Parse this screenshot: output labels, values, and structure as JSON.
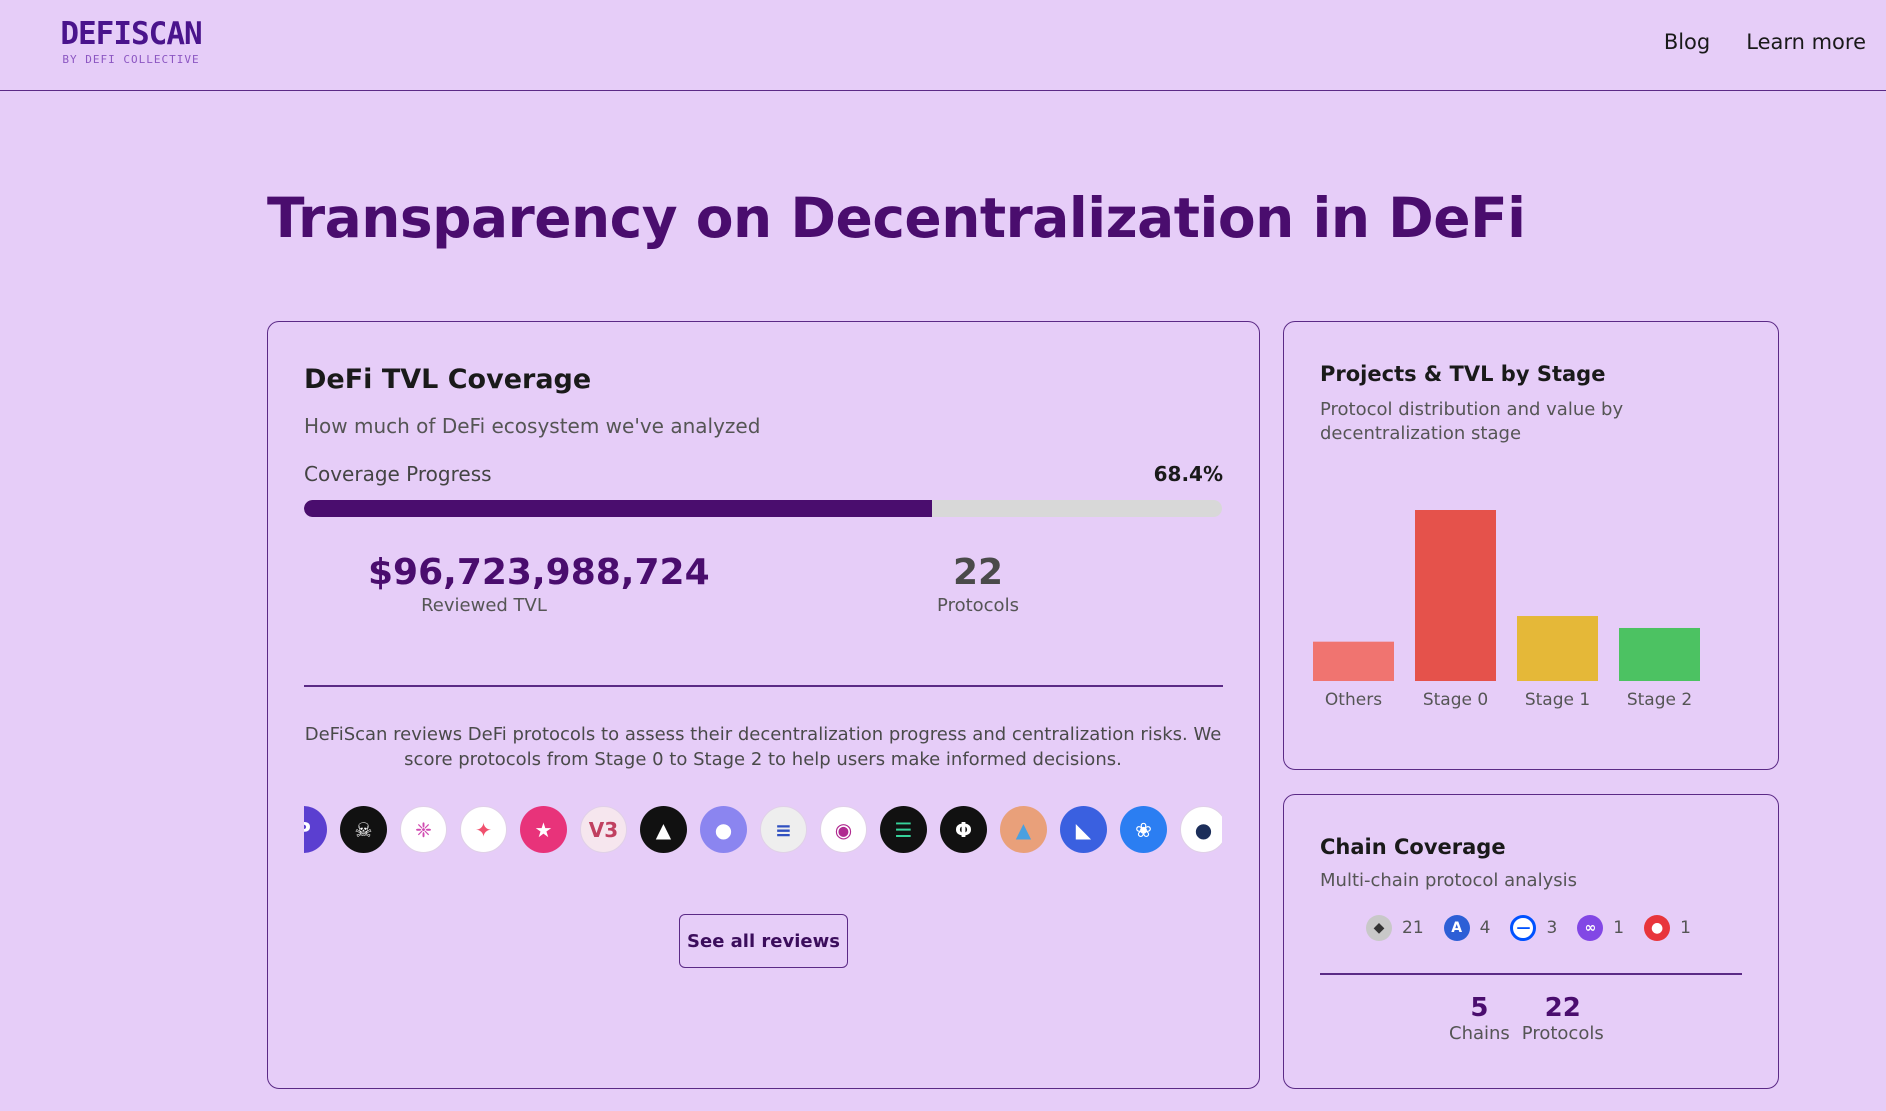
{
  "header": {
    "logo_text": "DEFISCAN",
    "logo_subtitle": "BY DEFI COLLECTIVE",
    "nav": [
      {
        "label": "Blog"
      },
      {
        "label": "Learn more"
      }
    ]
  },
  "hero": {
    "title": "Transparency on Decentralization in DeFi"
  },
  "tvl_card": {
    "title": "DeFi TVL Coverage",
    "subtitle": "How much of DeFi ecosystem we've analyzed",
    "progress_label": "Coverage Progress",
    "progress_value": "68.4%",
    "progress_fraction": 0.684,
    "reviewed_tvl": "$96,723,988,724",
    "reviewed_tvl_label": "Reviewed TVL",
    "protocols": "22",
    "protocols_label": "Protocols",
    "description": "DeFiScan reviews DeFi protocols to assess their decentralization progress and centralization risks. We score protocols from Stage 0 to Stage 2 to help users make informed decisions.",
    "protocol_logos": [
      {
        "icon": "partial-p-logo-icon",
        "bg": "#5b3fd0"
      },
      {
        "icon": "beast-logo-icon",
        "bg": "#111111"
      },
      {
        "icon": "pinwheel-logo-icon",
        "bg": "#ffffff"
      },
      {
        "icon": "star-logo-icon",
        "bg": "#ffffff"
      },
      {
        "icon": "pink-runner-logo-icon",
        "bg": "#e8337a"
      },
      {
        "icon": "v3-logo-icon",
        "bg": "#f6e6ee"
      },
      {
        "icon": "fluid-logo-icon",
        "bg": "#111111"
      },
      {
        "icon": "ghost-logo-icon",
        "bg": "#8b85f0"
      },
      {
        "icon": "euler-logo-icon",
        "bg": "#eeeeee"
      },
      {
        "icon": "eye-logo-icon",
        "bg": "#ffffff"
      },
      {
        "icon": "stack-logo-icon",
        "bg": "#111111"
      },
      {
        "icon": "phi-logo-icon",
        "bg": "#111111"
      },
      {
        "icon": "drop-logo-icon",
        "bg": "#e9a07a"
      },
      {
        "icon": "quarter-logo-icon",
        "bg": "#3a60e0"
      },
      {
        "icon": "butterfly-logo-icon",
        "bg": "#2b7ef2"
      },
      {
        "icon": "partial-dial-logo-icon",
        "bg": "#ffffff"
      }
    ],
    "button_label": "See all reviews"
  },
  "stage_card": {
    "title": "Projects & TVL by Stage",
    "subtitle": "Protocol distribution and value by decentralization stage"
  },
  "chart_data": {
    "type": "bar",
    "categories": [
      "Others",
      "Stage 0",
      "Stage 1",
      "Stage 2"
    ],
    "values": [
      2.3,
      10,
      3.8,
      3.1
    ],
    "colors": [
      "#f07470",
      "#e5524b",
      "#e5b838",
      "#4cc262"
    ],
    "ylim": [
      0,
      10
    ],
    "grid": false,
    "title": "",
    "xlabel": "",
    "ylabel": ""
  },
  "chain_card": {
    "title": "Chain Coverage",
    "subtitle": "Multi-chain protocol analysis",
    "chains": [
      {
        "icon": "ethereum-icon",
        "count": "21",
        "color": "#c8c8c8"
      },
      {
        "icon": "arbitrum-icon",
        "count": "4",
        "color": "#2d5fd6"
      },
      {
        "icon": "base-icon",
        "count": "3",
        "color": "#0052ff"
      },
      {
        "icon": "polygon-icon",
        "count": "1",
        "color": "#8247e5"
      },
      {
        "icon": "optimism-icon",
        "count": "1",
        "color": "#e8353b"
      }
    ],
    "chains_count": "5",
    "chains_label": "Chains",
    "protocols_count": "22",
    "protocols_label": "Protocols"
  }
}
